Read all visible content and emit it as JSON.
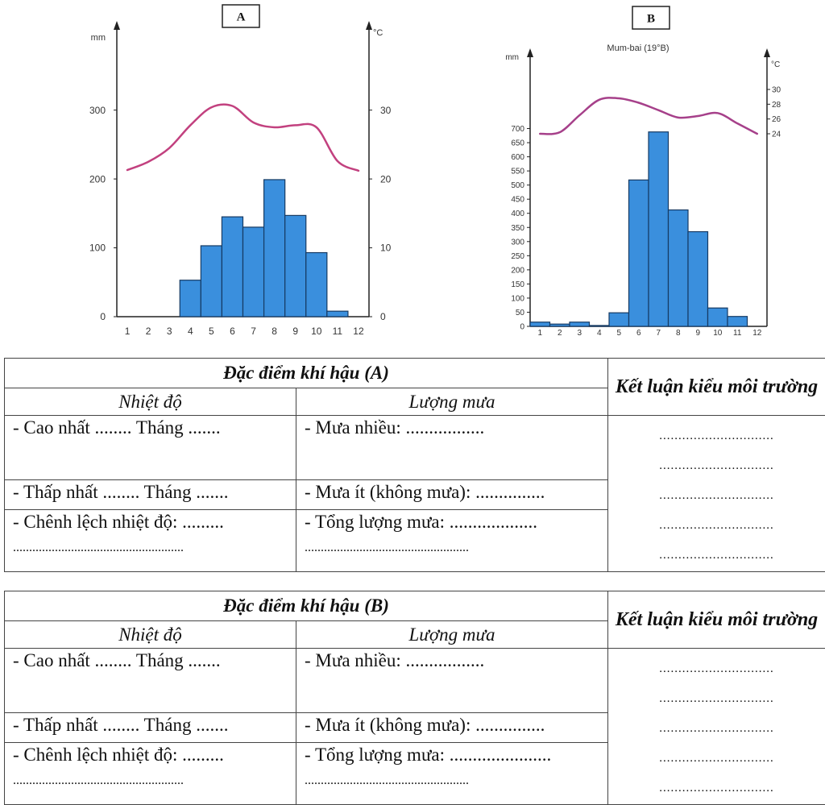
{
  "chart_data": [
    {
      "type": "bar",
      "title": "A",
      "subtitle": "",
      "y_left_unit": "mm",
      "y_right_unit": "°C",
      "categories": [
        "1",
        "2",
        "3",
        "4",
        "5",
        "6",
        "7",
        "8",
        "9",
        "10",
        "11",
        "12"
      ],
      "series": [
        {
          "kind": "bar",
          "color": "#3a8fdd",
          "values": [
            0,
            0,
            0,
            53,
            103,
            145,
            130,
            199,
            147,
            93,
            8,
            0
          ]
        },
        {
          "kind": "line",
          "color": "#c2417f",
          "values": [
            21.3,
            22.5,
            24.5,
            27.8,
            30.4,
            30.6,
            28.2,
            27.5,
            27.8,
            27.5,
            22.6,
            21.2
          ]
        }
      ],
      "ylim_left": [
        0,
        330
      ],
      "ylim_right": [
        0,
        33
      ],
      "y_left_ticks": [
        "0",
        "100",
        "200",
        "300"
      ],
      "y_right_ticks": [
        "0",
        "10",
        "20",
        "30"
      ]
    },
    {
      "type": "bar",
      "title": "B",
      "subtitle": "Mum-bai (19°B)",
      "y_left_unit": "mm",
      "y_right_unit": "°C",
      "categories": [
        "1",
        "2",
        "3",
        "4",
        "5",
        "6",
        "7",
        "8",
        "9",
        "10",
        "11",
        "12"
      ],
      "series": [
        {
          "kind": "bar",
          "color": "#3a8fdd",
          "values": [
            15,
            8,
            15,
            3,
            48,
            518,
            688,
            412,
            335,
            65,
            35,
            0
          ]
        },
        {
          "kind": "line",
          "color": "#a6408a",
          "values": [
            24,
            24.2,
            26.5,
            28.6,
            28.8,
            28.2,
            27.2,
            26.2,
            26.4,
            26.8,
            25.4,
            24
          ]
        }
      ],
      "ylim_left": [
        0,
        730
      ],
      "ylim_right": [
        24,
        30
      ],
      "y_left_ticks": [
        "0",
        "50",
        "100",
        "150",
        "200",
        "250",
        "300",
        "350",
        "400",
        "450",
        "500",
        "550",
        "600",
        "650",
        "700"
      ],
      "y_right_ticks": [
        "24",
        "26",
        "28",
        "30"
      ]
    }
  ],
  "tables": [
    {
      "title": "Đặc điểm khí hậu (A)",
      "conclusion_header": "Kết luận kiểu môi trường",
      "col_temp": "Nhiệt độ",
      "col_rain": "Lượng mưa",
      "temp_max": "- Cao nhất ........ Tháng .......",
      "temp_min": "- Thấp nhất ........ Tháng .......",
      "temp_diff": "- Chênh lệch nhiệt độ: .........",
      "temp_diff_dots": ".....................................................",
      "rain_max": "- Mưa nhiều: .................",
      "rain_min": "- Mưa ít (không mưa): ...............",
      "rain_total": "- Tổng lượng mưa: ...................",
      "rain_total_dots": "...................................................",
      "conclusion_dots": [
        "..............................",
        "..............................",
        "..............................",
        "..............................",
        ".............................."
      ]
    },
    {
      "title": "Đặc điểm khí hậu (B)",
      "conclusion_header": "Kết luận kiểu môi trường",
      "col_temp": "Nhiệt độ",
      "col_rain": "Lượng mưa",
      "temp_max": "- Cao nhất ........ Tháng .......",
      "temp_min": "- Thấp nhất ........ Tháng .......",
      "temp_diff": "- Chênh lệch nhiệt độ: .........",
      "temp_diff_dots": ".....................................................",
      "rain_max": "- Mưa nhiều: .................",
      "rain_min": "- Mưa ít (không mưa): ...............",
      "rain_total": "- Tổng lượng mưa: ......................",
      "rain_total_dots": "...................................................",
      "conclusion_dots": [
        "..............................",
        "..............................",
        "..............................",
        "..............................",
        ".............................."
      ]
    }
  ]
}
